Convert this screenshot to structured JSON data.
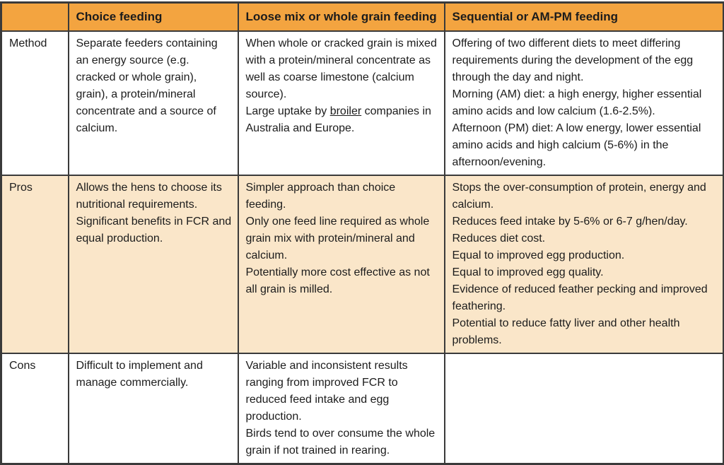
{
  "colors": {
    "header_bg": "#F3A440",
    "pros_row_bg": "#FAE6C9",
    "border": "#3A3A3A",
    "text": "#1C1C1C"
  },
  "table": {
    "header": {
      "corner_label": "",
      "columns": [
        "Choice feeding",
        "Loose mix or whole grain feeding",
        "Sequential or AM-PM feeding"
      ]
    },
    "rows": [
      {
        "label": "Method",
        "cells": [
          {
            "paragraphs": [
              "Separate feeders containing an energy source (e.g. cracked or whole grain), grain), a protein/mineral concentrate and a source of calcium."
            ]
          },
          {
            "paragraphs": [
              "When whole or cracked grain is mixed with a protein/mineral concentrate as well as coarse limestone (calcium source).",
              {
                "segments": [
                  {
                    "text": "Large uptake by "
                  },
                  {
                    "text": "broiler",
                    "underline": true
                  },
                  {
                    "text": " companies in Australia and Europe."
                  }
                ]
              }
            ]
          },
          {
            "paragraphs": [
              "Offering of two different diets to meet differing requirements during the development of the egg through the day and night.",
              "Morning (AM) diet: a high energy, higher essential amino acids and low calcium (1.6-2.5%).",
              "Afternoon (PM) diet: A low energy, lower essential amino acids and high calcium (5-6%) in the afternoon/evening."
            ]
          }
        ]
      },
      {
        "label": "Pros",
        "highlighted": true,
        "cells": [
          {
            "paragraphs": [
              "Allows the hens to choose its nutritional requirements.",
              "Significant benefits in FCR and equal production."
            ]
          },
          {
            "paragraphs": [
              "Simpler approach than choice feeding.",
              "Only one feed line required as whole grain mix with protein/mineral and calcium.",
              "Potentially more cost effective as not all grain is milled."
            ]
          },
          {
            "paragraphs": [
              "Stops the over-consumption of protein, energy and calcium.",
              "Reduces feed intake by 5-6% or 6-7 g/hen/day.",
              "Reduces diet cost.",
              "Equal to improved egg production.",
              "Equal to improved egg quality.",
              "Evidence of reduced feather pecking and improved feathering.",
              "Potential to reduce fatty liver and other health problems."
            ]
          }
        ]
      },
      {
        "label": "Cons",
        "cells": [
          {
            "paragraphs": [
              "Difficult to implement and manage commercially."
            ]
          },
          {
            "paragraphs": [
              "Variable and inconsistent results ranging from improved FCR to reduced feed intake and egg production.",
              "Birds tend to over consume the whole grain if not trained in rearing."
            ]
          },
          {
            "paragraphs": []
          }
        ]
      }
    ]
  }
}
